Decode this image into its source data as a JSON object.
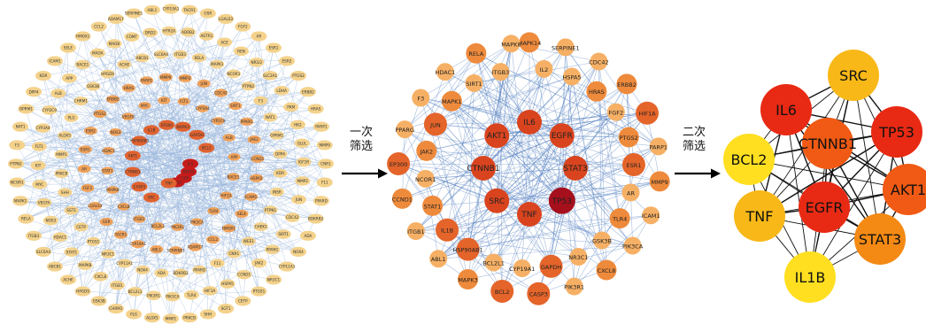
{
  "colors": {
    "edge": "#9bb7dd",
    "edge_final": "#111111",
    "outer": "#f4d28b",
    "mid": "#f0a25a",
    "inner": "#e0622f",
    "core": "#c61b1b",
    "final": [
      "#ffdf20",
      "#f8b818",
      "#f48a14",
      "#f05a14",
      "#e82a14"
    ]
  },
  "arrows": [
    {
      "line1": "一次",
      "line2": "筛选"
    },
    {
      "line1": "二次",
      "line2": "筛选"
    }
  ],
  "network1": {
    "center_labels": [
      "IL6",
      "STAT3",
      "EGFR",
      "TP53",
      "TNF",
      "SRC",
      "CASP3",
      "CTNNB1",
      "AKT1",
      "HSP90AB1",
      "IL1B",
      "EP300",
      "MAPK3",
      "GAPDH",
      "BCL2"
    ],
    "ring_labels": [
      "CNR1",
      "F11",
      "PPARD",
      "BDKRB2",
      "ADA",
      "NOX4",
      "CYP11A1",
      "NR3C1",
      "PTGS1",
      "CETP",
      "SGT1",
      "SHH",
      "PRKCB",
      "MMP1",
      "ALOX5",
      "PLG",
      "CHRM1",
      "GSK3B",
      "HPGDS",
      "ACHE",
      "ABCB1",
      "SLC6A4",
      "ITGB3",
      "RELA",
      "MAPK1",
      "NCOR1",
      "PTPN2",
      "F3",
      "NAT1",
      "OPRM1",
      "DPP4",
      "KDR",
      "ICAM1",
      "SELE",
      "HMOX1",
      "CCL2",
      "ADAM17",
      "SERPINE1",
      "ABL1",
      "CYP19A1",
      "TACR1",
      "GSR",
      "LGALS3",
      "FGF2",
      "AR",
      "ESR1",
      "ESR2",
      "PTGS2",
      "ERBB2",
      "HRAS",
      "PARP1",
      "MMP9",
      "MMP2",
      "JUN",
      "CDC42",
      "SIRT1",
      "PPARG",
      "JAK2",
      "CCND1",
      "HSPA5",
      "HIF1A",
      "TLR4",
      "PIK3CA",
      "PIK3R1",
      "BCL2L1",
      "ITGB1",
      "CXCL8",
      "MAPK8",
      "STAT1",
      "HDAC1",
      "NOS3",
      "VEGFA",
      "MYC",
      "KIT",
      "FLT1",
      "CYP3A4",
      "CYP2C9",
      "ALB",
      "APP",
      "BACE1",
      "MAOA",
      "MAOB",
      "COMT",
      "DRD2",
      "HTR2A",
      "ADRB2",
      "AGTR1",
      "ACE",
      "REN",
      "NR1I2",
      "SLC2A1",
      "LDHA",
      "PKM",
      "HK2",
      "GLUL",
      "IGF1R",
      "INSR",
      "PTPN1",
      "CHEK1",
      "WEE1"
    ]
  },
  "network2": {
    "nodes": [
      {
        "label": "MAPK14",
        "tier": 1
      },
      {
        "label": "IL2",
        "tier": 0
      },
      {
        "label": "SERPINE1",
        "tier": 0
      },
      {
        "label": "HSPA5",
        "tier": 0
      },
      {
        "label": "CDC42",
        "tier": 0
      },
      {
        "label": "HRAS",
        "tier": 1
      },
      {
        "label": "ERBB2",
        "tier": 1
      },
      {
        "label": "FGF2",
        "tier": 0
      },
      {
        "label": "HIF1A",
        "tier": 2
      },
      {
        "label": "PTGS2",
        "tier": 1
      },
      {
        "label": "PARP1",
        "tier": 0
      },
      {
        "label": "ESR1",
        "tier": 2
      },
      {
        "label": "MMP9",
        "tier": 1
      },
      {
        "label": "AR",
        "tier": 0
      },
      {
        "label": "ICAM1",
        "tier": 0
      },
      {
        "label": "IL6",
        "tier": 3
      },
      {
        "label": "EGFR",
        "tier": 3
      },
      {
        "label": "STAT3",
        "tier": 3
      },
      {
        "label": "TLR4",
        "tier": 1
      },
      {
        "label": "PIK3CA",
        "tier": 0
      },
      {
        "label": "GSK3B",
        "tier": 0
      },
      {
        "label": "CXCL8",
        "tier": 1
      },
      {
        "label": "TP53",
        "tier": 4
      },
      {
        "label": "NR3C1",
        "tier": 0
      },
      {
        "label": "PIK3R1",
        "tier": 0
      },
      {
        "label": "GAPDH",
        "tier": 2
      },
      {
        "label": "TNF",
        "tier": 3
      },
      {
        "label": "CASP3",
        "tier": 2
      },
      {
        "label": "CYP19A1",
        "tier": 0
      },
      {
        "label": "SRC",
        "tier": 3
      },
      {
        "label": "BCL2",
        "tier": 2
      },
      {
        "label": "BCL2L1",
        "tier": 0
      },
      {
        "label": "MAPK3",
        "tier": 1
      },
      {
        "label": "CTNNB1",
        "tier": 3
      },
      {
        "label": "AKT1",
        "tier": 3
      },
      {
        "label": "HSP90AB1",
        "tier": 2
      },
      {
        "label": "ABL1",
        "tier": 0
      },
      {
        "label": "IL1B",
        "tier": 2
      },
      {
        "label": "ITGB1",
        "tier": 0
      },
      {
        "label": "STAT1",
        "tier": 1
      },
      {
        "label": "CCND1",
        "tier": 1
      },
      {
        "label": "NCOR1",
        "tier": 0
      },
      {
        "label": "EP300",
        "tier": 2
      },
      {
        "label": "JAK2",
        "tier": 1
      },
      {
        "label": "PPARG",
        "tier": 0
      },
      {
        "label": "JUN",
        "tier": 2
      },
      {
        "label": "F3",
        "tier": 0
      },
      {
        "label": "MAPK1",
        "tier": 1
      },
      {
        "label": "HDAC1",
        "tier": 0
      },
      {
        "label": "SIRT1",
        "tier": 0
      },
      {
        "label": "RELA",
        "tier": 1
      },
      {
        "label": "ITGB3",
        "tier": 0
      },
      {
        "label": "MAPK8",
        "tier": 0
      }
    ]
  },
  "network3": {
    "nodes": [
      {
        "label": "SRC",
        "tier": 1
      },
      {
        "label": "IL6",
        "tier": 4
      },
      {
        "label": "TP53",
        "tier": 4
      },
      {
        "label": "CTNNB1",
        "tier": 3
      },
      {
        "label": "BCL2",
        "tier": 0
      },
      {
        "label": "AKT1",
        "tier": 3
      },
      {
        "label": "TNF",
        "tier": 1
      },
      {
        "label": "EGFR",
        "tier": 4
      },
      {
        "label": "STAT3",
        "tier": 2
      },
      {
        "label": "IL1B",
        "tier": 0
      }
    ]
  }
}
